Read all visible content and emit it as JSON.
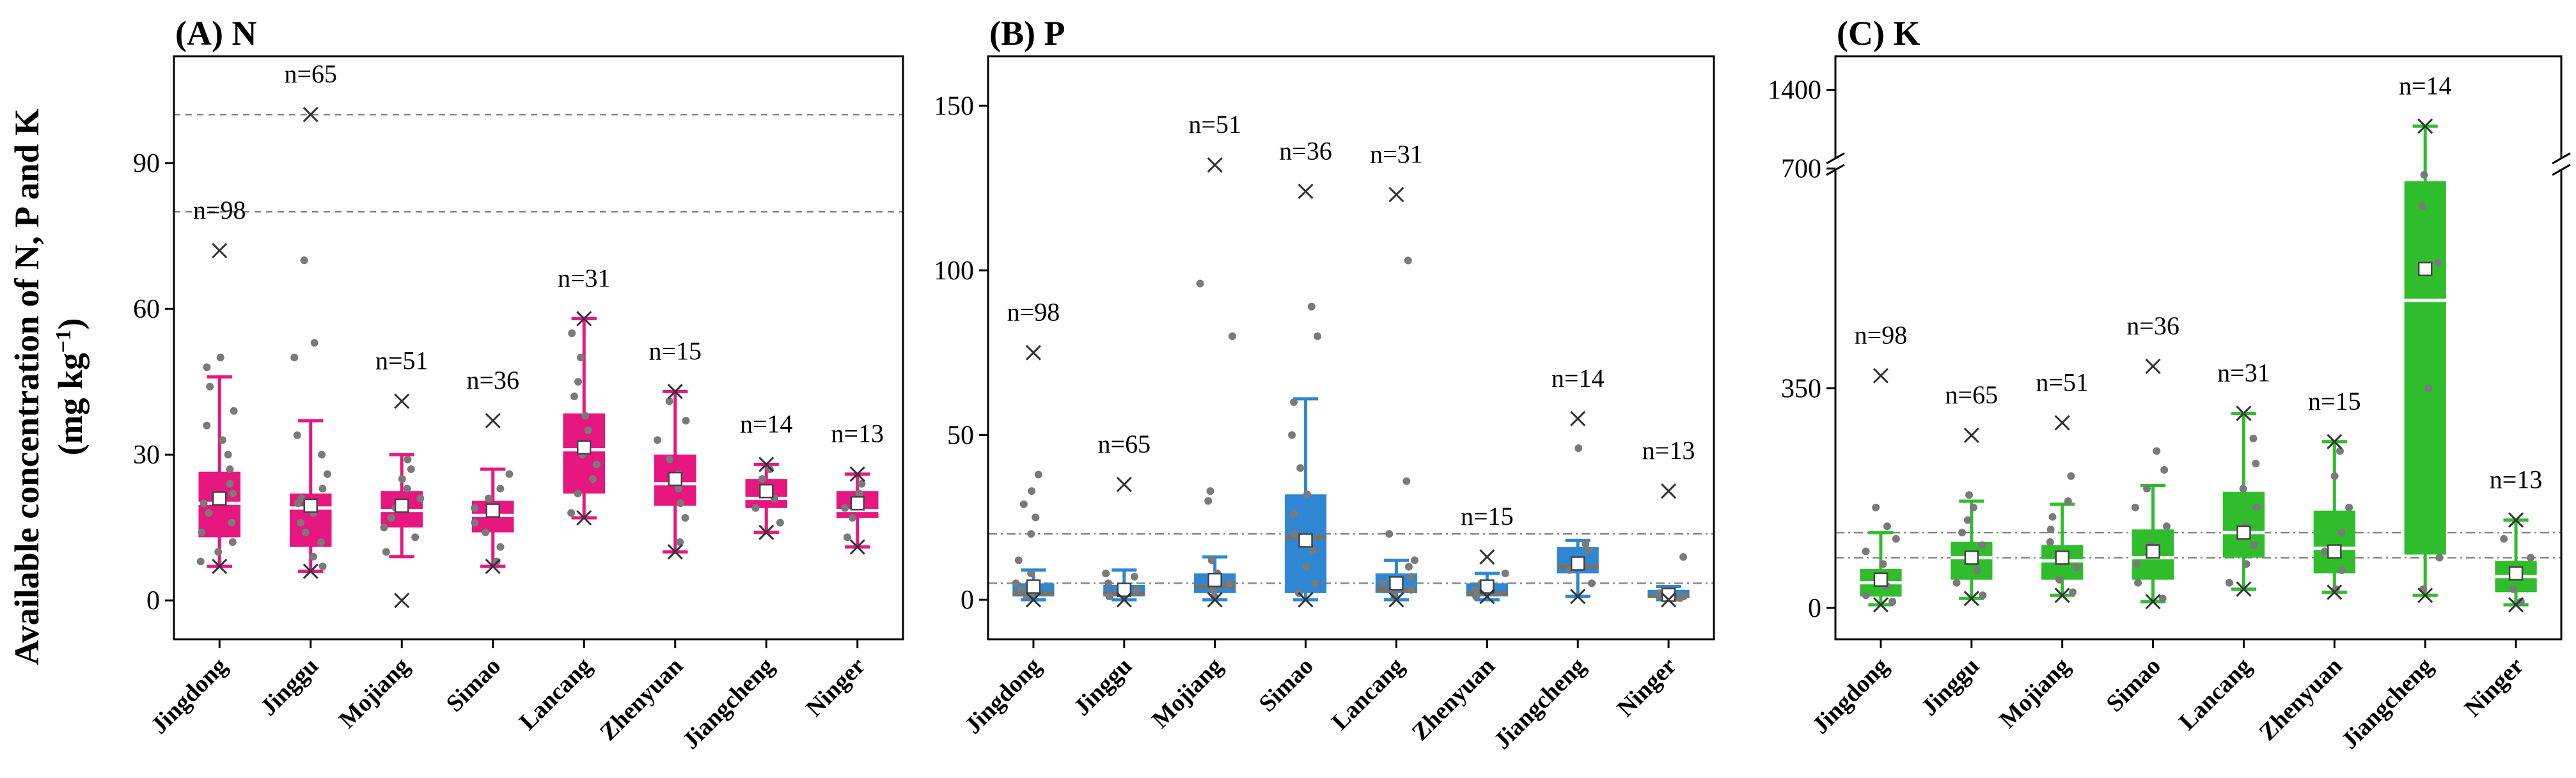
{
  "ylabel_line1": "Available concentration of N, P and K",
  "ylabel_line2_main": "(mg kg",
  "ylabel_line2_sup": "−1",
  "ylabel_line2_end": ")",
  "chart_data": [
    {
      "type": "box",
      "title": "(A) N",
      "color": "#e6177f",
      "categories": [
        "Jingdong",
        "Jinggu",
        "Mojiang",
        "Simao",
        "Lancang",
        "Zhenyuan",
        "Jiangcheng",
        "Ninger"
      ],
      "ylim": [
        -8,
        112
      ],
      "yticks": [
        0,
        30,
        60,
        90
      ],
      "ref_lines": [
        80,
        100
      ],
      "n_labels": [
        "n=98",
        "n=65",
        "n=51",
        "n=36",
        "n=31",
        "n=15",
        "n=14",
        "n=13"
      ],
      "boxes": [
        {
          "q1": 13,
          "median": 20,
          "q3": 26.5,
          "mean": 21,
          "wlo": 7,
          "whi": 46,
          "max": 72,
          "min": 7,
          "pts": [
            8,
            10,
            12,
            14,
            16,
            18,
            20,
            22,
            24,
            27,
            30,
            33,
            36,
            39,
            44,
            48,
            50
          ]
        },
        {
          "q1": 11,
          "median": 19,
          "q3": 22,
          "mean": 19.5,
          "wlo": 6,
          "whi": 37,
          "max": 100,
          "min": 6,
          "pts": [
            7,
            9,
            12,
            14,
            16,
            18,
            20,
            21,
            23,
            26,
            30,
            34,
            50,
            53,
            70
          ]
        },
        {
          "q1": 15,
          "median": 18.5,
          "q3": 22.5,
          "mean": 19.5,
          "wlo": 9,
          "whi": 30,
          "max": 41,
          "min": 0,
          "pts": [
            10,
            13,
            15,
            17,
            19,
            21,
            23,
            25,
            27,
            29
          ]
        },
        {
          "q1": 14,
          "median": 17.5,
          "q3": 20.5,
          "mean": 18.5,
          "wlo": 7,
          "whi": 27,
          "max": 37,
          "min": 7,
          "pts": [
            8,
            11,
            14,
            16,
            18,
            19,
            21,
            23,
            26
          ]
        },
        {
          "q1": 22,
          "median": 31,
          "q3": 38.5,
          "mean": 31.5,
          "wlo": 17,
          "whi": 58,
          "max": 58,
          "min": 17,
          "pts": [
            18,
            22,
            25,
            28,
            30,
            32,
            35,
            38,
            42,
            45,
            50,
            55
          ]
        },
        {
          "q1": 19.5,
          "median": 24,
          "q3": 30,
          "mean": 25,
          "wlo": 10,
          "whi": 43,
          "max": 43,
          "min": 10,
          "pts": [
            12,
            17,
            20,
            23,
            26,
            29,
            33,
            37,
            41
          ]
        },
        {
          "q1": 19,
          "median": 21,
          "q3": 25,
          "mean": 22.5,
          "wlo": 14,
          "whi": 28,
          "max": 28,
          "min": 14,
          "pts": [
            16,
            19,
            21,
            23,
            25,
            27
          ]
        },
        {
          "q1": 17,
          "median": 18.5,
          "q3": 22.5,
          "mean": 20,
          "wlo": 11,
          "whi": 26,
          "max": 26,
          "min": 11,
          "pts": [
            13,
            17,
            19,
            22,
            24
          ]
        }
      ]
    },
    {
      "type": "box",
      "title": "(B) P",
      "color": "#2f86d2",
      "categories": [
        "Jingdong",
        "Jinggu",
        "Mojiang",
        "Simao",
        "Lancang",
        "Zhenyuan",
        "Jiangcheng",
        "Ninger"
      ],
      "ylim": [
        -12,
        165
      ],
      "yticks": [
        0,
        50,
        100,
        150
      ],
      "ref_lines": [
        5,
        20
      ],
      "n_labels": [
        "n=98",
        "n=65",
        "n=51",
        "n=36",
        "n=31",
        "n=15",
        "n=14",
        "n=13"
      ],
      "boxes": [
        {
          "q1": 1,
          "median": 2,
          "q3": 5,
          "mean": 4,
          "wlo": 0,
          "whi": 9,
          "max": 75,
          "min": 0,
          "pts": [
            1,
            2,
            3,
            5,
            8,
            12,
            20,
            25,
            29,
            33,
            38
          ]
        },
        {
          "q1": 1,
          "median": 2,
          "q3": 4.5,
          "mean": 3,
          "wlo": 0,
          "whi": 9,
          "max": 35,
          "min": 0,
          "pts": [
            1,
            2,
            3,
            5,
            7,
            8
          ]
        },
        {
          "q1": 2,
          "median": 4,
          "q3": 8,
          "mean": 6,
          "wlo": 0,
          "whi": 13,
          "max": 132,
          "min": 0,
          "pts": [
            1,
            3,
            5,
            8,
            12,
            30,
            33,
            80,
            96
          ]
        },
        {
          "q1": 2,
          "median": 19,
          "q3": 32,
          "mean": 18,
          "wlo": 0,
          "whi": 61,
          "max": 124,
          "min": 0,
          "pts": [
            2,
            5,
            10,
            15,
            20,
            26,
            32,
            40,
            50,
            60,
            80,
            89
          ]
        },
        {
          "q1": 2,
          "median": 3,
          "q3": 8,
          "mean": 5,
          "wlo": 0,
          "whi": 12,
          "max": 123,
          "min": 0,
          "pts": [
            1,
            3,
            5,
            7,
            10,
            12,
            20,
            36,
            103
          ]
        },
        {
          "q1": 1,
          "median": 2,
          "q3": 5,
          "mean": 4,
          "wlo": 0,
          "whi": 8,
          "max": 13,
          "min": 1,
          "pts": [
            1,
            3,
            5,
            8
          ]
        },
        {
          "q1": 8,
          "median": 10,
          "q3": 16,
          "mean": 11,
          "wlo": 1,
          "whi": 18,
          "max": 55,
          "min": 1,
          "pts": [
            5,
            9,
            12,
            15,
            17,
            46
          ]
        },
        {
          "q1": 0.5,
          "median": 1,
          "q3": 3,
          "mean": 1.5,
          "wlo": 0,
          "whi": 4,
          "max": 33,
          "min": 0,
          "pts": [
            0.5,
            1,
            2,
            3,
            13
          ]
        }
      ]
    },
    {
      "type": "box",
      "title": "(C) K",
      "color": "#2fbd2b",
      "categories": [
        "Jingdong",
        "Jinggu",
        "Mojiang",
        "Simao",
        "Lancang",
        "Zhenyuan",
        "Jiangcheng",
        "Ninger"
      ],
      "ylim": [
        -50,
        1520
      ],
      "axis_break": [
        700,
        1150
      ],
      "yticks": [
        0,
        350,
        700,
        1400
      ],
      "ref_lines": [
        80,
        120
      ],
      "n_labels": [
        "n=98",
        "n=65",
        "n=51",
        "n=36",
        "n=31",
        "n=15",
        "n=14",
        "n=13"
      ],
      "boxes": [
        {
          "q1": 18,
          "median": 40,
          "q3": 62,
          "mean": 45,
          "wlo": 5,
          "whi": 120,
          "max": 370,
          "min": 5,
          "pts": [
            10,
            20,
            35,
            50,
            70,
            90,
            110,
            130,
            160
          ]
        },
        {
          "q1": 45,
          "median": 80,
          "q3": 105,
          "mean": 80,
          "wlo": 15,
          "whi": 170,
          "max": 275,
          "min": 15,
          "pts": [
            20,
            40,
            60,
            80,
            100,
            120,
            140,
            160,
            180
          ]
        },
        {
          "q1": 45,
          "median": 75,
          "q3": 100,
          "mean": 80,
          "wlo": 20,
          "whi": 165,
          "max": 295,
          "min": 20,
          "pts": [
            25,
            45,
            65,
            85,
            105,
            125,
            145,
            170,
            210
          ]
        },
        {
          "q1": 45,
          "median": 80,
          "q3": 125,
          "mean": 90,
          "wlo": 10,
          "whi": 195,
          "max": 385,
          "min": 10,
          "pts": [
            15,
            40,
            70,
            100,
            130,
            160,
            190,
            220,
            250
          ]
        },
        {
          "q1": 80,
          "median": 120,
          "q3": 185,
          "mean": 120,
          "wlo": 30,
          "whi": 310,
          "max": 310,
          "min": 30,
          "pts": [
            40,
            70,
            100,
            130,
            160,
            190,
            230,
            270
          ]
        },
        {
          "q1": 55,
          "median": 95,
          "q3": 155,
          "mean": 90,
          "wlo": 25,
          "whi": 265,
          "max": 265,
          "min": 25,
          "pts": [
            30,
            60,
            90,
            120,
            160,
            210,
            250
          ]
        },
        {
          "q1": 85,
          "median": 490,
          "q3": 680,
          "mean": 540,
          "wlo": 20,
          "whi": 1270,
          "max": 1270,
          "min": 20,
          "pts": [
            30,
            80,
            350,
            550,
            640,
            690
          ]
        },
        {
          "q1": 25,
          "median": 50,
          "q3": 75,
          "mean": 55,
          "wlo": 5,
          "whi": 140,
          "max": 140,
          "min": 5,
          "pts": [
            10,
            30,
            50,
            80,
            110
          ]
        }
      ]
    }
  ]
}
